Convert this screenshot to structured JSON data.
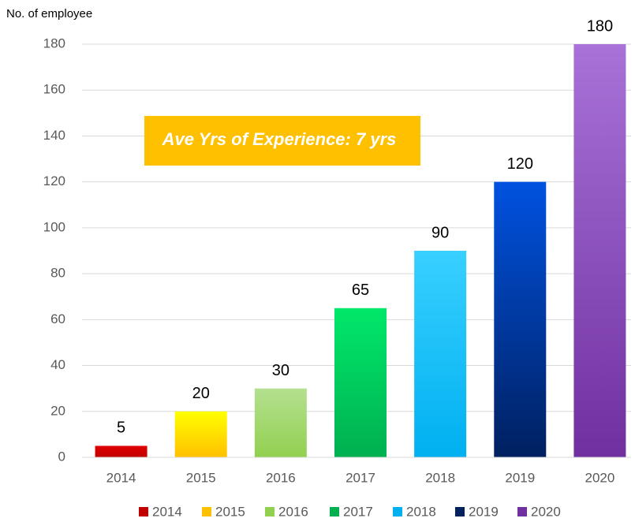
{
  "chart_data": {
    "type": "bar",
    "y_axis_label": "No. of employee",
    "annotation": "Ave Yrs of Experience: 7 yrs",
    "categories": [
      "2014",
      "2015",
      "2016",
      "2017",
      "2018",
      "2019",
      "2020"
    ],
    "values": [
      5,
      20,
      30,
      65,
      90,
      120,
      180
    ],
    "colors": [
      [
        "#e00000",
        "#c00000"
      ],
      [
        "#ffff00",
        "#ffc000"
      ],
      [
        "#b4e090",
        "#92d050"
      ],
      [
        "#00e86a",
        "#00b050"
      ],
      [
        "#38d0ff",
        "#00b0f0"
      ],
      [
        "#0052e0",
        "#002060"
      ],
      [
        "#a872d8",
        "#7030a0"
      ]
    ],
    "ylim": [
      0,
      180
    ],
    "yticks": [
      0,
      20,
      40,
      60,
      80,
      100,
      120,
      140,
      160,
      180
    ],
    "grid": true,
    "legend": "bottom"
  }
}
